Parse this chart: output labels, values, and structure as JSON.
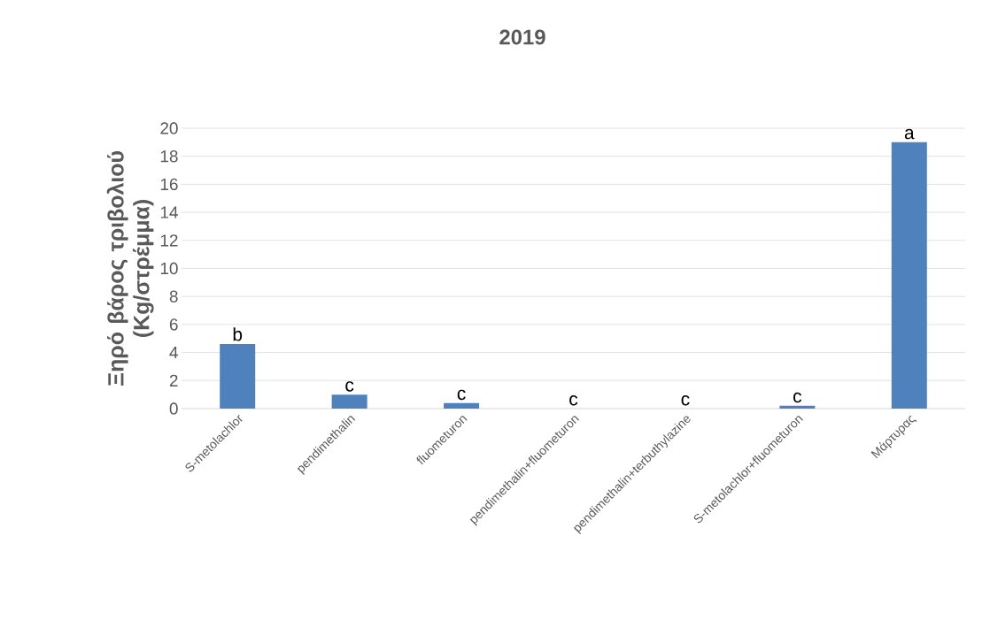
{
  "chart_data": {
    "type": "bar",
    "title": "2019",
    "ylabel": "Ξηρό βάρος τριβολιού (Kg/στρέμμα)",
    "categories": [
      "S-metolachlor",
      "pendimethalin",
      "fluometuron",
      "pendimethalin+fluometuron",
      "pendimethalin+terbuthylazine",
      "S-metolachlor+fluometuron",
      "Μάρτυρας"
    ],
    "values": [
      4.6,
      1.0,
      0.4,
      0,
      0,
      0.2,
      19.0
    ],
    "color": "#4f81bd",
    "ylim": [
      0,
      20
    ],
    "yticks": [
      0,
      2,
      4,
      6,
      8,
      10,
      12,
      14,
      16,
      18,
      20
    ],
    "grid": "y",
    "annotations": [
      "b",
      "c",
      "c",
      "c",
      "c",
      "c",
      "a"
    ]
  }
}
